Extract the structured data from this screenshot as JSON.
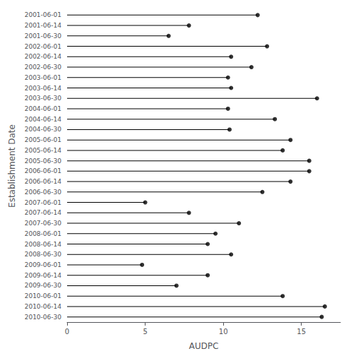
{
  "chart_data": {
    "type": "lollipop",
    "orientation": "horizontal",
    "xlabel": "AUDPC",
    "ylabel": "Establishment Date",
    "categories": [
      "2001-06-01",
      "2001-06-14",
      "2001-06-30",
      "2002-06-01",
      "2002-06-14",
      "2002-06-30",
      "2003-06-01",
      "2003-06-14",
      "2003-06-30",
      "2004-06-01",
      "2004-06-14",
      "2004-06-30",
      "2005-06-01",
      "2005-06-14",
      "2005-06-30",
      "2006-06-01",
      "2006-06-14",
      "2006-06-30",
      "2007-06-01",
      "2007-06-14",
      "2007-06-30",
      "2008-06-01",
      "2008-06-14",
      "2008-06-30",
      "2009-06-01",
      "2009-06-14",
      "2009-06-30",
      "2010-06-01",
      "2010-06-14",
      "2010-06-30"
    ],
    "values": [
      12.2,
      7.8,
      6.5,
      12.8,
      10.5,
      11.8,
      10.3,
      10.5,
      16.0,
      10.3,
      13.3,
      10.4,
      14.3,
      13.8,
      15.5,
      15.5,
      14.3,
      12.5,
      5.0,
      7.8,
      11.0,
      9.5,
      9.0,
      10.5,
      4.8,
      9.0,
      7.0,
      13.8,
      16.5,
      16.3
    ],
    "color": "#000000",
    "xlim": [
      0,
      17.5
    ],
    "xticks": [
      0,
      5,
      10,
      15
    ],
    "grid": false
  }
}
